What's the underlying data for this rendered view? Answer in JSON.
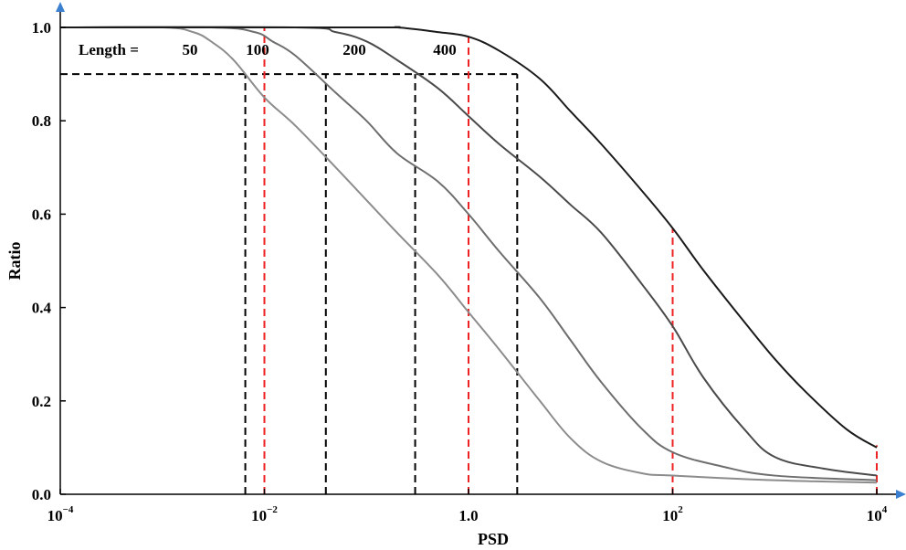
{
  "chart_data": {
    "type": "line",
    "title": "",
    "xlabel": "PSD",
    "ylabel": "Ratio",
    "x_scale": "log",
    "xlim": [
      0.0001,
      10000
    ],
    "ylim": [
      0.0,
      1.0
    ],
    "x_ticks": [
      {
        "value": 0.0001,
        "base": "10",
        "exp": "−4"
      },
      {
        "value": 0.01,
        "base": "10",
        "exp": "−2"
      },
      {
        "value": 1,
        "base": "1.0",
        "exp": ""
      },
      {
        "value": 100,
        "base": "10",
        "exp": "2"
      },
      {
        "value": 10000,
        "base": "10",
        "exp": "4"
      }
    ],
    "y_ticks": [
      "0.0",
      "0.2",
      "0.4",
      "0.6",
      "0.8",
      "1.0"
    ],
    "grid": false,
    "legend": "none",
    "length_label": "Length =",
    "series": [
      {
        "name": "50",
        "color": "#8c8c8c",
        "x": [
          0.0001,
          0.001,
          0.002,
          0.003,
          0.005,
          0.01,
          0.02,
          0.05,
          0.1,
          0.2,
          0.5,
          1,
          2,
          5,
          10,
          20,
          50,
          100,
          1000,
          10000
        ],
        "y": [
          1.0,
          1.0,
          0.99,
          0.97,
          0.93,
          0.85,
          0.79,
          0.7,
          0.63,
          0.56,
          0.47,
          0.39,
          0.31,
          0.2,
          0.12,
          0.07,
          0.045,
          0.04,
          0.03,
          0.025
        ]
      },
      {
        "name": "100",
        "color": "#6e6e6e",
        "x": [
          0.0001,
          0.003,
          0.008,
          0.012,
          0.02,
          0.05,
          0.1,
          0.2,
          0.5,
          1,
          2,
          5,
          10,
          20,
          50,
          100,
          300,
          1000,
          10000
        ],
        "y": [
          1.0,
          1.0,
          0.99,
          0.97,
          0.94,
          0.86,
          0.8,
          0.73,
          0.67,
          0.6,
          0.52,
          0.42,
          0.33,
          0.24,
          0.14,
          0.09,
          0.06,
          0.04,
          0.03
        ]
      },
      {
        "name": "200",
        "color": "#4a4a4a",
        "x": [
          0.0001,
          0.02,
          0.05,
          0.1,
          0.2,
          0.5,
          1,
          2,
          5,
          10,
          20,
          50,
          100,
          200,
          500,
          1000,
          3000,
          10000
        ],
        "y": [
          1.0,
          1.0,
          0.99,
          0.97,
          0.93,
          0.87,
          0.81,
          0.75,
          0.68,
          0.62,
          0.56,
          0.45,
          0.36,
          0.25,
          0.14,
          0.08,
          0.055,
          0.04
        ]
      },
      {
        "name": "400",
        "color": "#1a1a1a",
        "x": [
          0.0001,
          0.1,
          0.2,
          0.5,
          1,
          2,
          5,
          10,
          20,
          50,
          100,
          200,
          500,
          1000,
          2000,
          5000,
          10000
        ],
        "y": [
          1.0,
          1.0,
          1.0,
          0.99,
          0.98,
          0.95,
          0.89,
          0.82,
          0.75,
          0.65,
          0.57,
          0.48,
          0.37,
          0.29,
          0.22,
          0.14,
          0.1
        ]
      }
    ],
    "reference_lines": {
      "horizontal": {
        "y": 0.9,
        "x_to": 3.0,
        "color": "#000000",
        "style": "dashed"
      },
      "black_verticals": [
        {
          "x": 0.0065,
          "y_to": 0.9
        },
        {
          "x": 0.04,
          "y_to": 0.9
        },
        {
          "x": 0.3,
          "y_to": 0.9
        },
        {
          "x": 3.0,
          "y_to": 0.9
        }
      ],
      "red_verticals": [
        {
          "x": 0.01,
          "y_to": 1.0
        },
        {
          "x": 1,
          "y_to": 0.98
        },
        {
          "x": 100,
          "y_to": 0.57
        },
        {
          "x": 10000,
          "y_to": 0.105
        }
      ],
      "red_color": "#ee2222"
    }
  }
}
